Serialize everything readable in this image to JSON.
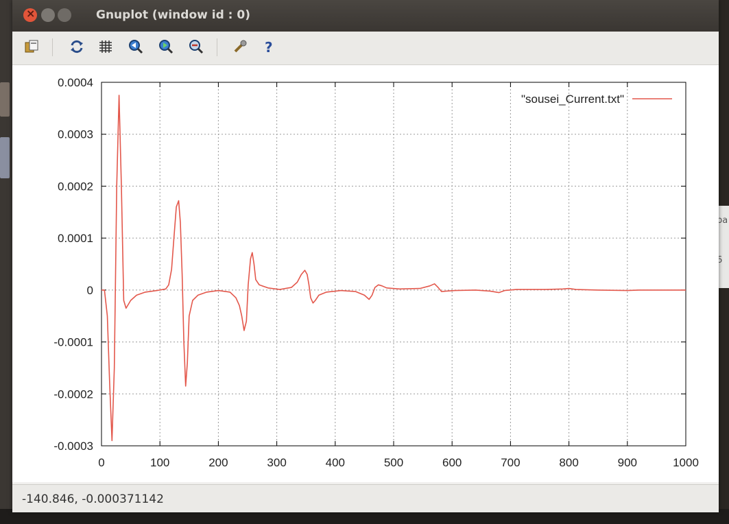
{
  "window": {
    "title": "Gnuplot (window id : 0)"
  },
  "toolbar": {
    "buttons": [
      {
        "name": "copy-to-clipboard-icon"
      },
      {
        "name": "replot-icon"
      },
      {
        "name": "grid-icon"
      },
      {
        "name": "zoom-previous-icon"
      },
      {
        "name": "zoom-next-icon"
      },
      {
        "name": "unzoom-icon"
      },
      {
        "name": "settings-icon"
      },
      {
        "name": "help-icon"
      }
    ]
  },
  "status": {
    "coordinates": "-140.846, -0.000371142"
  },
  "desktop": {
    "right_edge_text_1": "pa",
    "right_edge_text_2": "6"
  },
  "chart_data": {
    "type": "line",
    "legend_position": "top-right",
    "grid": true,
    "xlim": [
      0,
      1000
    ],
    "ylim": [
      -0.0003,
      0.0004
    ],
    "x_ticks": [
      "0",
      "100",
      "200",
      "300",
      "400",
      "500",
      "600",
      "700",
      "800",
      "900",
      "1000"
    ],
    "y_ticks": [
      "-0.0003",
      "-0.0002",
      "-0.0001",
      "0",
      "0.0001",
      "0.0002",
      "0.0003",
      "0.0004"
    ],
    "series": [
      {
        "name": "\"sousei_Current.txt\"",
        "color": "#e3574b",
        "points": [
          [
            0,
            0
          ],
          [
            5,
            0
          ],
          [
            10,
            -5e-05
          ],
          [
            14,
            -0.00018
          ],
          [
            18,
            -0.00029
          ],
          [
            22,
            -0.00015
          ],
          [
            26,
            0.0002
          ],
          [
            30,
            0.000375
          ],
          [
            34,
            0.0002
          ],
          [
            38,
            -2e-05
          ],
          [
            42,
            -3.5e-05
          ],
          [
            50,
            -2e-05
          ],
          [
            60,
            -1e-05
          ],
          [
            75,
            -4e-06
          ],
          [
            95,
            -1e-06
          ],
          [
            110,
            2e-06
          ],
          [
            115,
            1e-05
          ],
          [
            120,
            4e-05
          ],
          [
            124,
            0.0001
          ],
          [
            128,
            0.00016
          ],
          [
            132,
            0.000172
          ],
          [
            135,
            0.00013
          ],
          [
            138,
            3e-05
          ],
          [
            141,
            -0.0001
          ],
          [
            144,
            -0.000185
          ],
          [
            147,
            -0.00014
          ],
          [
            150,
            -5e-05
          ],
          [
            156,
            -2e-05
          ],
          [
            165,
            -1e-05
          ],
          [
            180,
            -4e-06
          ],
          [
            200,
            -1e-06
          ],
          [
            220,
            -4e-06
          ],
          [
            230,
            -1.5e-05
          ],
          [
            236,
            -3e-05
          ],
          [
            240,
            -5e-05
          ],
          [
            244,
            -7.8e-05
          ],
          [
            248,
            -6e-05
          ],
          [
            251,
            1e-05
          ],
          [
            255,
            6e-05
          ],
          [
            258,
            7.2e-05
          ],
          [
            261,
            5e-05
          ],
          [
            264,
            2e-05
          ],
          [
            270,
            1e-05
          ],
          [
            285,
            4e-06
          ],
          [
            305,
            1e-06
          ],
          [
            325,
            5e-06
          ],
          [
            335,
            1.5e-05
          ],
          [
            342,
            3e-05
          ],
          [
            348,
            3.8e-05
          ],
          [
            352,
            3e-05
          ],
          [
            355,
            1e-05
          ],
          [
            358,
            -1.5e-05
          ],
          [
            362,
            -2.5e-05
          ],
          [
            366,
            -2e-05
          ],
          [
            372,
            -1e-05
          ],
          [
            385,
            -4e-06
          ],
          [
            410,
            -1e-06
          ],
          [
            435,
            -3e-06
          ],
          [
            450,
            -1e-05
          ],
          [
            458,
            -1.8e-05
          ],
          [
            463,
            -1e-05
          ],
          [
            468,
            5e-06
          ],
          [
            474,
            1e-05
          ],
          [
            480,
            8e-06
          ],
          [
            488,
            4e-06
          ],
          [
            510,
            2e-06
          ],
          [
            545,
            3e-06
          ],
          [
            562,
            8e-06
          ],
          [
            570,
            1.2e-05
          ],
          [
            576,
            5e-06
          ],
          [
            582,
            -3e-06
          ],
          [
            590,
            -2e-06
          ],
          [
            605,
            -1e-06
          ],
          [
            640,
            0
          ],
          [
            665,
            -2e-06
          ],
          [
            680,
            -5e-06
          ],
          [
            690,
            -1e-06
          ],
          [
            710,
            1e-06
          ],
          [
            760,
            1e-06
          ],
          [
            790,
            2e-06
          ],
          [
            800,
            3e-06
          ],
          [
            812,
            1e-06
          ],
          [
            850,
            0
          ],
          [
            900,
            -1e-06
          ],
          [
            920,
            0
          ],
          [
            1000,
            0
          ]
        ]
      }
    ]
  }
}
